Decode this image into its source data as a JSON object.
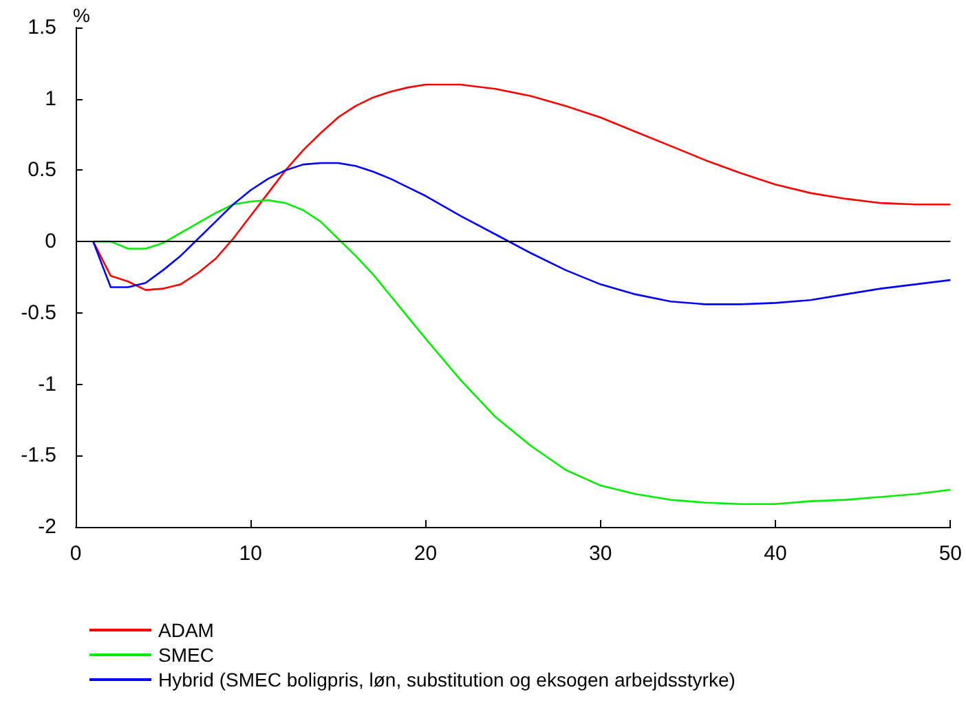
{
  "chart_data": {
    "type": "line",
    "ylabel": "%",
    "xlim": [
      0,
      50
    ],
    "xticks": [
      0,
      10,
      20,
      30,
      40,
      50
    ],
    "ylim": [
      -2,
      1.5
    ],
    "yticks": [
      -2,
      -1.5,
      -1,
      -0.5,
      0,
      0.5,
      1,
      1.5
    ],
    "grid": false,
    "legend": "bottom",
    "marker": "none",
    "line_style": "solid",
    "ref_lines": [
      {
        "axis": "y",
        "value": 0,
        "color": "#000000"
      }
    ],
    "series": [
      {
        "name": "ADAM",
        "color": "#ff0000",
        "x": [
          1,
          2,
          3,
          4,
          5,
          6,
          7,
          8,
          9,
          10,
          11,
          12,
          13,
          14,
          15,
          16,
          17,
          18,
          19,
          20,
          21,
          22,
          24,
          26,
          28,
          30,
          32,
          34,
          36,
          38,
          40,
          42,
          44,
          46,
          48,
          50
        ],
        "values": [
          0,
          -0.24,
          -0.28,
          -0.34,
          -0.33,
          -0.3,
          -0.22,
          -0.12,
          0.02,
          0.18,
          0.34,
          0.5,
          0.64,
          0.76,
          0.87,
          0.95,
          1.01,
          1.05,
          1.08,
          1.1,
          1.1,
          1.1,
          1.07,
          1.02,
          0.95,
          0.87,
          0.77,
          0.67,
          0.57,
          0.48,
          0.4,
          0.34,
          0.3,
          0.27,
          0.26,
          0.26
        ]
      },
      {
        "name": "SMEC",
        "color": "#00ee00",
        "x": [
          1,
          2,
          3,
          4,
          5,
          6,
          7,
          8,
          9,
          10,
          11,
          12,
          13,
          14,
          15,
          16,
          17,
          18,
          19,
          20,
          22,
          24,
          26,
          28,
          30,
          32,
          34,
          36,
          38,
          40,
          42,
          44,
          46,
          48,
          50
        ],
        "values": [
          0,
          0,
          -0.05,
          -0.05,
          -0.01,
          0.06,
          0.13,
          0.2,
          0.26,
          0.28,
          0.29,
          0.27,
          0.22,
          0.14,
          0.02,
          -0.1,
          -0.23,
          -0.38,
          -0.53,
          -0.68,
          -0.97,
          -1.23,
          -1.43,
          -1.6,
          -1.71,
          -1.77,
          -1.81,
          -1.83,
          -1.84,
          -1.84,
          -1.82,
          -1.81,
          -1.79,
          -1.77,
          -1.74
        ]
      },
      {
        "name": "Hybrid (SMEC boligpris, løn, substitution og eksogen arbejdsstyrke)",
        "color": "#0000ff",
        "x": [
          1,
          2,
          3,
          4,
          5,
          6,
          7,
          8,
          9,
          10,
          11,
          12,
          13,
          14,
          15,
          16,
          17,
          18,
          19,
          20,
          22,
          24,
          26,
          28,
          30,
          32,
          34,
          36,
          38,
          40,
          42,
          44,
          46,
          48,
          50
        ],
        "values": [
          0,
          -0.32,
          -0.32,
          -0.29,
          -0.2,
          -0.1,
          0.02,
          0.14,
          0.26,
          0.36,
          0.44,
          0.5,
          0.54,
          0.55,
          0.55,
          0.53,
          0.49,
          0.44,
          0.38,
          0.32,
          0.18,
          0.05,
          -0.08,
          -0.2,
          -0.3,
          -0.37,
          -0.42,
          -0.44,
          -0.44,
          -0.43,
          -0.41,
          -0.37,
          -0.33,
          -0.3,
          -0.27
        ]
      }
    ]
  }
}
